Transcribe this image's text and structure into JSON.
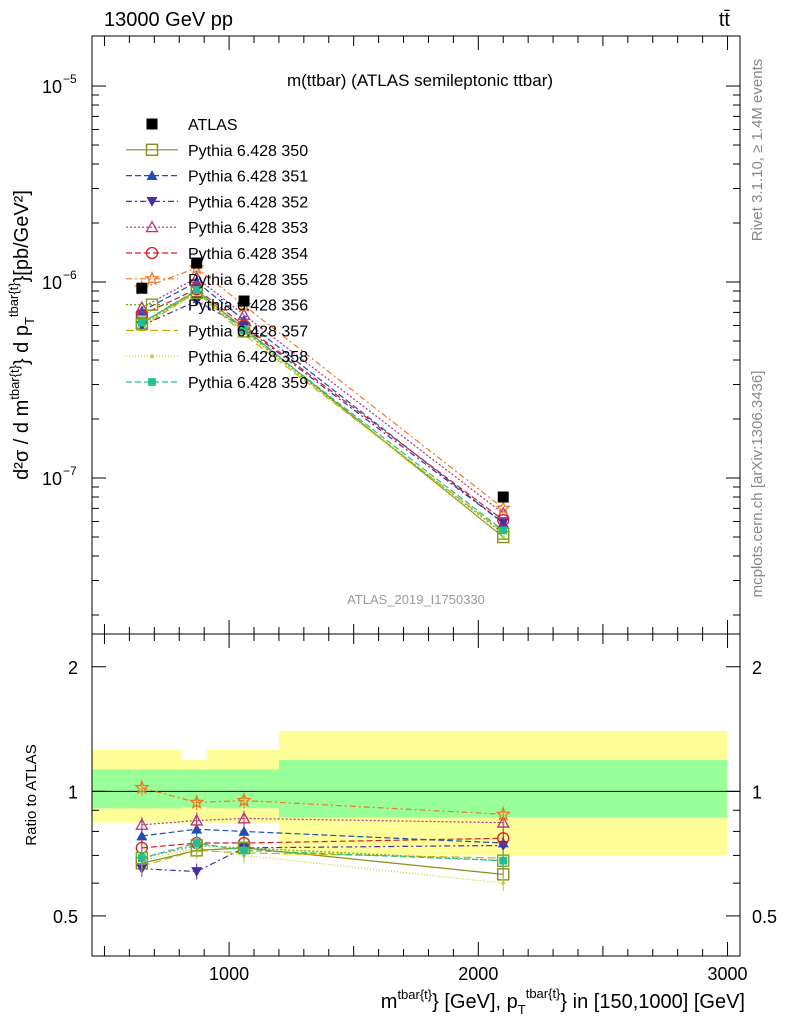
{
  "header": {
    "left": "13000 GeV pp",
    "right": "tt̄"
  },
  "side_labels": {
    "rivet": "Rivet 3.1.10, ≥ 1.4M events",
    "mcplots": "mcplots.cern.ch [arXiv:1306.3436]"
  },
  "main_panel": {
    "title": "m(ttbar) (ATLAS semileptonic ttbar)",
    "ylabel_main": "d²σ / d m",
    "ylabel_sup": "tbar{t}",
    "ylabel_mid": "} d p",
    "ylabel_sub": "T",
    "ylabel_sup2": "tbar{t}",
    "ylabel_end": "}[pb/GeV²]",
    "watermark": "ATLAS_2019_I1750330",
    "y_ticks": [
      {
        "base": "10",
        "exp": "−5",
        "value": 1e-05
      },
      {
        "base": "10",
        "exp": "−6",
        "value": 1e-06
      },
      {
        "base": "10",
        "exp": "−7",
        "value": 1e-07
      }
    ]
  },
  "ratio_panel": {
    "ylabel": "Ratio to ATLAS",
    "y_ticks": [
      "0.5",
      "1",
      "2"
    ],
    "x_ticks": [
      "1000",
      "2000",
      "3000"
    ],
    "xlabel_main": "m",
    "xlabel_sup": "tbar{t}",
    "xlabel_mid": "} [GeV], p",
    "xlabel_sub": "T",
    "xlabel_sup2": "tbar{t}",
    "xlabel_end": "} in [150,1000] [GeV]"
  },
  "chart_data": {
    "type": "scatter",
    "x_range": [
      450,
      3050
    ],
    "y_range_main": [
      1.6e-08,
      1.8e-05
    ],
    "y_scale_main": "log",
    "y_range_ratio": [
      0.4,
      2.4
    ],
    "y_scale_ratio": "log",
    "bins": [
      {
        "lo": 450,
        "hi": 810,
        "center": 650
      },
      {
        "lo": 810,
        "hi": 910,
        "center": 870
      },
      {
        "lo": 910,
        "hi": 1200,
        "center": 1060
      },
      {
        "lo": 1200,
        "hi": 3000,
        "center": 2100
      }
    ],
    "data_band_inner": [
      {
        "lo": 0.91,
        "hi": 1.13
      },
      {
        "lo": 0.915,
        "hi": 1.13
      },
      {
        "lo": 0.91,
        "hi": 1.13
      },
      {
        "lo": 0.865,
        "hi": 1.19
      }
    ],
    "data_band_outer": [
      {
        "lo": 0.84,
        "hi": 1.26
      },
      {
        "lo": 0.84,
        "hi": 1.19
      },
      {
        "lo": 0.84,
        "hi": 1.26
      },
      {
        "lo": 0.7,
        "hi": 1.4
      }
    ],
    "legend_position": "top-left",
    "series": [
      {
        "name": "ATLAS",
        "color": "#000000",
        "marker": "square-filled",
        "dash": "",
        "values": [
          9.3e-07,
          1.25e-06,
          8e-07,
          8e-08
        ],
        "ratio": [
          1,
          1,
          1,
          1
        ]
      },
      {
        "name": "Pythia 6.428 350",
        "color": "#8c8c21",
        "marker": "square-open",
        "dash": "",
        "values": [
          6.2e-07,
          9e-07,
          5.8e-07,
          5e-08
        ],
        "ratio": [
          0.67,
          0.72,
          0.73,
          0.63
        ]
      },
      {
        "name": "Pythia 6.428 351",
        "color": "#1f4eb5",
        "marker": "triangle-up-filled",
        "dash": "6,3",
        "values": [
          7.1e-07,
          1e-06,
          6.4e-07,
          5.9e-08
        ],
        "ratio": [
          0.78,
          0.81,
          0.8,
          0.75
        ]
      },
      {
        "name": "Pythia 6.428 352",
        "color": "#4a2ca8",
        "marker": "triangle-down-filled",
        "dash": "6,3,2,3",
        "values": [
          6e-07,
          8e-07,
          5.9e-07,
          5.9e-08
        ],
        "ratio": [
          0.65,
          0.64,
          0.73,
          0.74
        ]
      },
      {
        "name": "Pythia 6.428 353",
        "color": "#b23080",
        "marker": "triangle-up-open",
        "dash": "2,2",
        "values": [
          7.4e-07,
          1.05e-06,
          6.8e-07,
          6.6e-08
        ],
        "ratio": [
          0.83,
          0.85,
          0.86,
          0.84
        ]
      },
      {
        "name": "Pythia 6.428 354",
        "color": "#d42020",
        "marker": "circle-open",
        "dash": "6,3",
        "values": [
          6.8e-07,
          9.2e-07,
          6e-07,
          6.1e-08
        ],
        "ratio": [
          0.73,
          0.75,
          0.75,
          0.77
        ]
      },
      {
        "name": "Pythia 6.428 355",
        "color": "#f07820",
        "marker": "star-open",
        "dash": "6,3,2,3",
        "values": [
          9.3e-07,
          1.18e-06,
          7.6e-07,
          7e-08
        ],
        "ratio": [
          1.02,
          0.94,
          0.95,
          0.88
        ]
      },
      {
        "name": "Pythia 6.428 356",
        "color": "#7aa020",
        "marker": "square-open",
        "dash": "2,2",
        "values": [
          6.1e-07,
          8.8e-07,
          5.6e-07,
          5.2e-08
        ],
        "ratio": [
          0.69,
          0.74,
          0.73,
          0.68
        ]
      },
      {
        "name": "Pythia 6.428 357",
        "color": "#c8b400",
        "marker": "none",
        "dash": "8,4",
        "values": [
          5.9e-07,
          8.9e-07,
          5.4e-07,
          5.3e-08
        ],
        "ratio": [
          0.66,
          0.72,
          0.71,
          0.69
        ]
      },
      {
        "name": "Pythia 6.428 358",
        "color": "#b4d228",
        "marker": "dot",
        "dash": "1,2",
        "values": [
          6.1e-07,
          9e-07,
          5.6e-07,
          5e-08
        ],
        "ratio": [
          0.68,
          0.73,
          0.7,
          0.6
        ]
      },
      {
        "name": "Pythia 6.428 359",
        "color": "#20c090",
        "marker": "square-small-filled",
        "dash": "6,3",
        "values": [
          6.2e-07,
          9.1e-07,
          5.7e-07,
          5.4e-08
        ],
        "ratio": [
          0.69,
          0.75,
          0.72,
          0.68
        ]
      }
    ]
  }
}
